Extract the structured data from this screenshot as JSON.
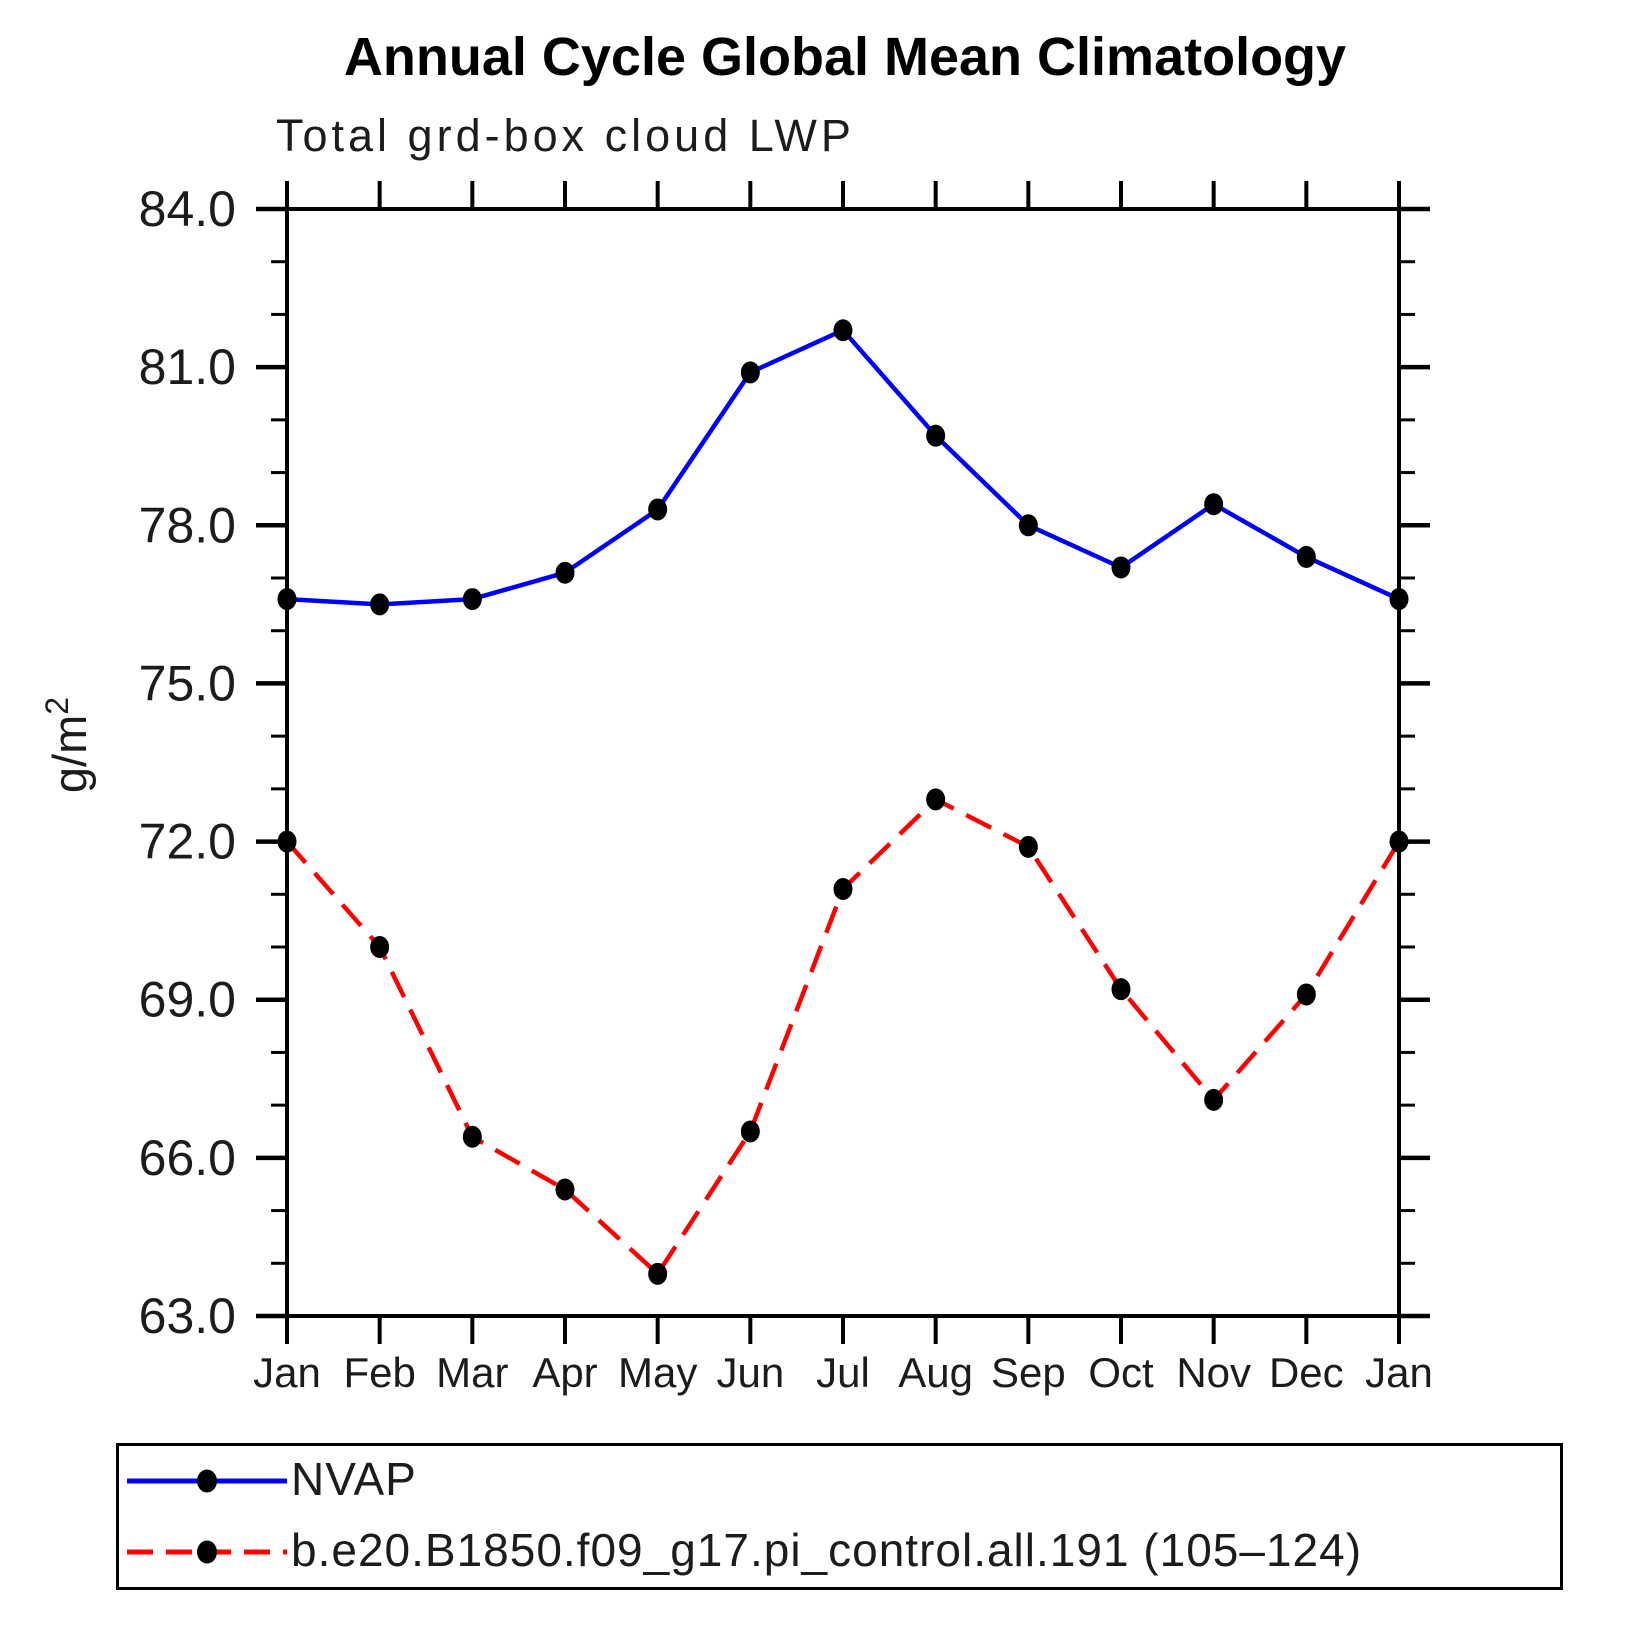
{
  "title": "Annual Cycle Global Mean Climatology",
  "subtitle": "Total grd-box cloud LWP",
  "y_axis": {
    "label": "g/m²",
    "tick_labels": [
      "84.0",
      "81.0",
      "78.0",
      "75.0",
      "72.0",
      "69.0",
      "66.0",
      "63.0"
    ],
    "min": 63.0,
    "max": 84.0,
    "major_step": 3,
    "minor_step": 1
  },
  "x_axis": {
    "labels": [
      "Jan",
      "Feb",
      "Mar",
      "Apr",
      "May",
      "Jun",
      "Jul",
      "Aug",
      "Sep",
      "Oct",
      "Nov",
      "Dec",
      "Jan"
    ]
  },
  "legend": {
    "items": [
      {
        "label": "NVAP",
        "color": "#0000ff",
        "style": "solid",
        "marker": "filled-circle"
      },
      {
        "label": "b.e20.B1850.f09_g17.pi_control.all.191 (105–124)",
        "color": "#ff0000",
        "style": "dashed",
        "marker": "filled-circle"
      }
    ]
  },
  "colors": {
    "nvap_line": "#0000ff",
    "model_line": "#ff0000",
    "marker": "#000000",
    "axis": "#000000",
    "text": "#1c1c1c"
  },
  "chart_data": {
    "type": "line",
    "categories": [
      "Jan",
      "Feb",
      "Mar",
      "Apr",
      "May",
      "Jun",
      "Jul",
      "Aug",
      "Sep",
      "Oct",
      "Nov",
      "Dec",
      "Jan"
    ],
    "series": [
      {
        "name": "NVAP",
        "color": "#0000ff",
        "style": "solid",
        "values": [
          76.6,
          76.5,
          76.6,
          77.1,
          78.3,
          80.9,
          81.7,
          79.7,
          78.0,
          77.2,
          78.4,
          77.4,
          76.6
        ]
      },
      {
        "name": "b.e20.B1850.f09_g17.pi_control.all.191 (105–124)",
        "color": "#ff0000",
        "style": "dashed",
        "values": [
          72.0,
          70.0,
          66.4,
          65.4,
          63.8,
          66.5,
          71.1,
          72.8,
          71.9,
          69.2,
          67.1,
          69.1,
          72.0
        ]
      }
    ],
    "title": "Annual Cycle Global Mean Climatology",
    "subtitle": "Total grd-box cloud LWP",
    "xlabel": "",
    "ylabel": "g/m²",
    "ylim": [
      63.0,
      84.0
    ],
    "y_major_ticks": [
      63.0,
      66.0,
      69.0,
      72.0,
      75.0,
      78.0,
      81.0,
      84.0
    ],
    "y_minor_step": 1.0,
    "marker": "filled-circle",
    "grid": false,
    "legend_position": "bottom"
  }
}
